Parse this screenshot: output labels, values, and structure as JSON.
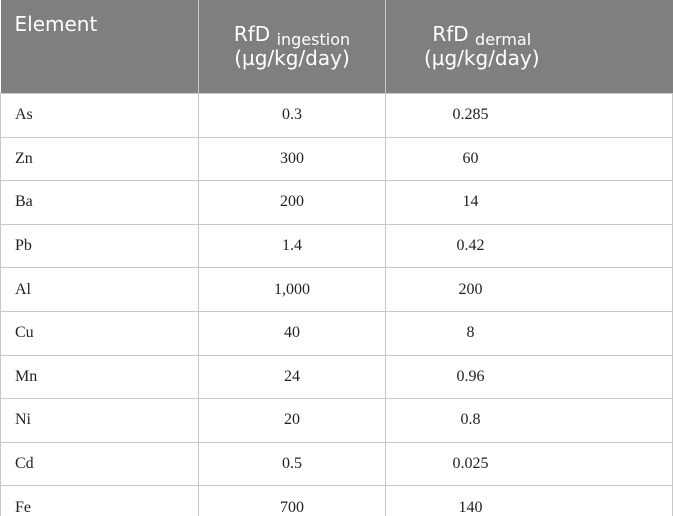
{
  "table": {
    "header": [
      {
        "main": "Element"
      },
      {
        "main": "RfD",
        "sub": "ingestion",
        "unit": "(µg/kg/day)"
      },
      {
        "main": "RfD",
        "sub": "dermal",
        "unit": "(µg/kg/day)"
      }
    ],
    "rows": [
      [
        "As",
        "0.3",
        "0.285"
      ],
      [
        "Zn",
        "300",
        "60"
      ],
      [
        "Ba",
        "200",
        "14"
      ],
      [
        "Pb",
        "1.4",
        "0.42"
      ],
      [
        "Al",
        "1,000",
        "200"
      ],
      [
        "Cu",
        "40",
        "8"
      ],
      [
        "Mn",
        "24",
        "0.96"
      ],
      [
        "Ni",
        "20",
        "0.8"
      ],
      [
        "Cd",
        "0.5",
        "0.025"
      ],
      [
        "Fe",
        "700",
        "140"
      ]
    ]
  }
}
